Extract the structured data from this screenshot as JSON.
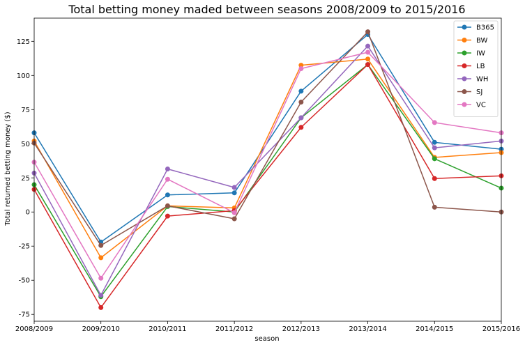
{
  "chart_data": {
    "type": "line",
    "title": "Total betting money maded between seasons 2008/2009 to 2015/2016",
    "xlabel": "season",
    "ylabel": "Total returned betting money ($)",
    "categories": [
      "2008/2009",
      "2009/2010",
      "2010/2011",
      "2011/2012",
      "2012/2013",
      "2013/2014",
      "2014/2015",
      "2015/2016"
    ],
    "ylim": [
      -80,
      142
    ],
    "yticks": [
      -75,
      -50,
      -25,
      0,
      25,
      50,
      75,
      100,
      125
    ],
    "grid": false,
    "legend_position": "top-right",
    "series": [
      {
        "name": "B365",
        "color": "#1f77b4",
        "values": [
          58,
          -22,
          12.5,
          14,
          88.5,
          130,
          51,
          46
        ]
      },
      {
        "name": "BW",
        "color": "#ff7f0e",
        "values": [
          52,
          -33.5,
          4.5,
          3,
          107.5,
          112,
          40,
          43.5
        ]
      },
      {
        "name": "IW",
        "color": "#2ca02c",
        "values": [
          20,
          -62,
          4,
          0,
          69,
          108,
          39,
          17.5
        ]
      },
      {
        "name": "LB",
        "color": "#d62728",
        "values": [
          16.5,
          -70,
          -3,
          1,
          62,
          108,
          24.5,
          26.5
        ]
      },
      {
        "name": "WH",
        "color": "#9467bd",
        "values": [
          28.5,
          -61,
          31.5,
          18,
          69,
          121.5,
          47,
          52
        ]
      },
      {
        "name": "SJ",
        "color": "#8c564b",
        "values": [
          50.5,
          -24.5,
          4.5,
          -5,
          80.5,
          132,
          3.5,
          0
        ]
      },
      {
        "name": "VC",
        "color": "#e377c2",
        "values": [
          36.5,
          -48.5,
          24,
          -0.5,
          105,
          117,
          65.5,
          58
        ]
      }
    ]
  }
}
